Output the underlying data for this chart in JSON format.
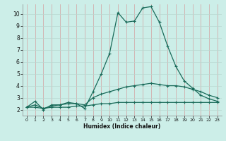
{
  "xlabel": "Humidex (Indice chaleur)",
  "bg_color": "#cceee8",
  "grid_color_v": "#d4a0a0",
  "grid_color_h": "#b8d8d0",
  "line_color": "#1a6b5a",
  "xlim": [
    -0.5,
    23.5
  ],
  "ylim": [
    1.5,
    10.8
  ],
  "xticks": [
    0,
    1,
    2,
    3,
    4,
    5,
    6,
    7,
    8,
    9,
    10,
    11,
    12,
    13,
    14,
    15,
    16,
    17,
    18,
    19,
    20,
    21,
    22,
    23
  ],
  "yticks": [
    2,
    3,
    4,
    5,
    6,
    7,
    8,
    9,
    10
  ],
  "line1_x": [
    0,
    1,
    2,
    3,
    4,
    5,
    6,
    7,
    8,
    9,
    10,
    11,
    12,
    13,
    14,
    15,
    16,
    17,
    18,
    19,
    20,
    21,
    22,
    23
  ],
  "line1_y": [
    2.2,
    2.7,
    2.0,
    2.4,
    2.4,
    2.5,
    2.5,
    2.1,
    3.5,
    5.0,
    6.7,
    10.1,
    9.3,
    9.4,
    10.5,
    10.6,
    9.3,
    7.3,
    5.6,
    4.4,
    3.8,
    3.2,
    2.9,
    2.7
  ],
  "line2_x": [
    0,
    1,
    2,
    3,
    4,
    5,
    6,
    7,
    8,
    9,
    10,
    11,
    12,
    13,
    14,
    15,
    16,
    17,
    18,
    19,
    20,
    21,
    22,
    23
  ],
  "line2_y": [
    2.2,
    2.4,
    2.1,
    2.3,
    2.4,
    2.6,
    2.5,
    2.4,
    3.0,
    3.3,
    3.5,
    3.7,
    3.9,
    4.0,
    4.1,
    4.2,
    4.1,
    4.0,
    4.0,
    3.9,
    3.7,
    3.5,
    3.2,
    3.0
  ],
  "line3_x": [
    0,
    1,
    2,
    3,
    4,
    5,
    6,
    7,
    8,
    9,
    10,
    11,
    12,
    13,
    14,
    15,
    16,
    17,
    18,
    19,
    20,
    21,
    22,
    23
  ],
  "line3_y": [
    2.2,
    2.2,
    2.1,
    2.2,
    2.2,
    2.2,
    2.3,
    2.3,
    2.4,
    2.5,
    2.5,
    2.6,
    2.6,
    2.6,
    2.6,
    2.6,
    2.6,
    2.6,
    2.6,
    2.6,
    2.6,
    2.6,
    2.6,
    2.6
  ],
  "xlabel_fontsize": 5.5,
  "tick_fontsize_x": 4.5,
  "tick_fontsize_y": 5.5,
  "marker_size": 3,
  "linewidth": 0.9
}
